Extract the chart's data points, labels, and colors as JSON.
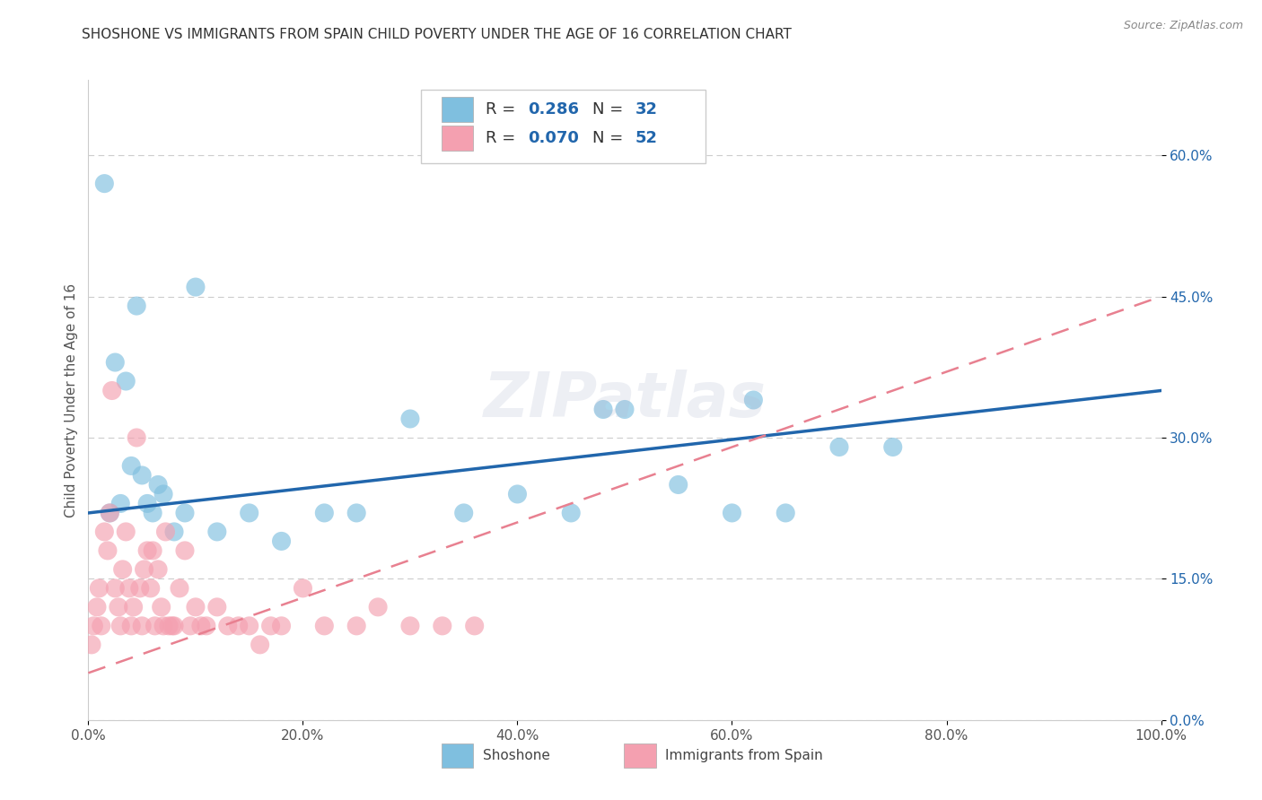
{
  "title": "SHOSHONE VS IMMIGRANTS FROM SPAIN CHILD POVERTY UNDER THE AGE OF 16 CORRELATION CHART",
  "source": "Source: ZipAtlas.com",
  "ylabel": "Child Poverty Under the Age of 16",
  "xlim": [
    0,
    100
  ],
  "ylim": [
    0,
    68
  ],
  "yticks": [
    0,
    15,
    30,
    45,
    60
  ],
  "xticks": [
    0,
    20,
    40,
    60,
    80,
    100
  ],
  "xtick_labels": [
    "0.0%",
    "20.0%",
    "40.0%",
    "60.0%",
    "80.0%",
    "100.0%"
  ],
  "ytick_labels": [
    "0.0%",
    "15.0%",
    "30.0%",
    "45.0%",
    "60.0%"
  ],
  "shoshone_R": 0.286,
  "shoshone_N": 32,
  "spain_R": 0.07,
  "spain_N": 52,
  "shoshone_color": "#7fbfdf",
  "spain_color": "#f4a0b0",
  "shoshone_line_color": "#2166ac",
  "spain_line_color": "#e88090",
  "background_color": "#ffffff",
  "grid_color": "#cccccc",
  "watermark": "ZIPatlas",
  "legend_labels": [
    "Shoshone",
    "Immigrants from Spain"
  ],
  "shoshone_x": [
    1.5,
    2.0,
    2.5,
    3.0,
    3.5,
    4.0,
    4.5,
    5.0,
    5.5,
    6.0,
    6.5,
    7.0,
    8.0,
    9.0,
    10.0,
    12.0,
    15.0,
    18.0,
    22.0,
    25.0,
    30.0,
    35.0,
    40.0,
    45.0,
    48.0,
    50.0,
    55.0,
    60.0,
    62.0,
    65.0,
    70.0,
    75.0
  ],
  "shoshone_y": [
    57.0,
    22.0,
    38.0,
    23.0,
    36.0,
    27.0,
    44.0,
    26.0,
    23.0,
    22.0,
    25.0,
    24.0,
    20.0,
    22.0,
    46.0,
    20.0,
    22.0,
    19.0,
    22.0,
    22.0,
    32.0,
    22.0,
    24.0,
    22.0,
    33.0,
    33.0,
    25.0,
    22.0,
    34.0,
    22.0,
    29.0,
    29.0
  ],
  "spain_x": [
    0.3,
    0.5,
    0.8,
    1.0,
    1.2,
    1.5,
    1.8,
    2.0,
    2.2,
    2.5,
    2.8,
    3.0,
    3.2,
    3.5,
    3.8,
    4.0,
    4.2,
    4.5,
    4.8,
    5.0,
    5.2,
    5.5,
    5.8,
    6.0,
    6.2,
    6.5,
    6.8,
    7.0,
    7.2,
    7.5,
    7.8,
    8.0,
    8.5,
    9.0,
    9.5,
    10.0,
    10.5,
    11.0,
    12.0,
    13.0,
    14.0,
    15.0,
    16.0,
    17.0,
    18.0,
    20.0,
    22.0,
    25.0,
    27.0,
    30.0,
    33.0,
    36.0
  ],
  "spain_y": [
    8.0,
    10.0,
    12.0,
    14.0,
    10.0,
    20.0,
    18.0,
    22.0,
    35.0,
    14.0,
    12.0,
    10.0,
    16.0,
    20.0,
    14.0,
    10.0,
    12.0,
    30.0,
    14.0,
    10.0,
    16.0,
    18.0,
    14.0,
    18.0,
    10.0,
    16.0,
    12.0,
    10.0,
    20.0,
    10.0,
    10.0,
    10.0,
    14.0,
    18.0,
    10.0,
    12.0,
    10.0,
    10.0,
    12.0,
    10.0,
    10.0,
    10.0,
    8.0,
    10.0,
    10.0,
    14.0,
    10.0,
    10.0,
    12.0,
    10.0,
    10.0,
    10.0
  ],
  "shoshone_line_y0": 22.0,
  "shoshone_line_y100": 35.0,
  "spain_line_y0": 5.0,
  "spain_line_y100": 45.0,
  "title_fontsize": 11,
  "tick_fontsize": 11,
  "ylabel_fontsize": 11
}
